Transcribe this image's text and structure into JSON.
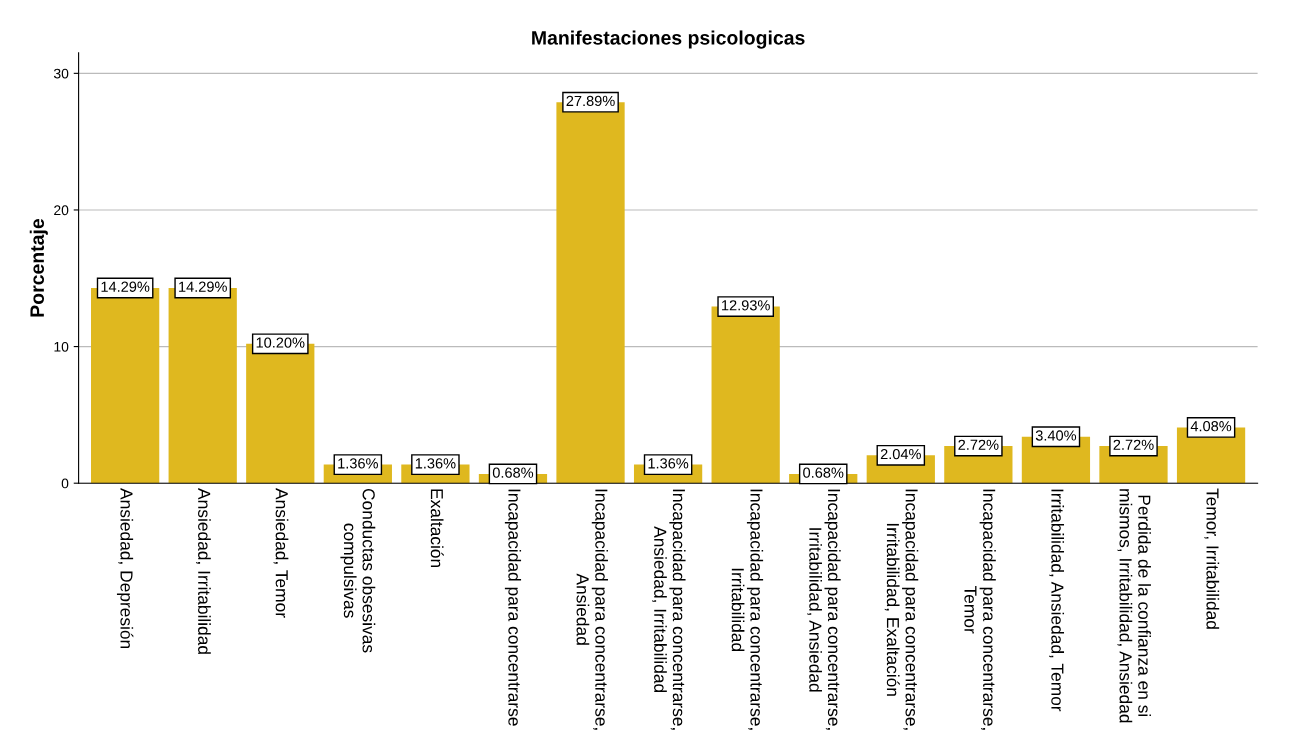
{
  "chart_data": {
    "type": "bar",
    "title": "Manifestaciones psicologicas",
    "ylabel": "Porcentaje",
    "categories": [
      "Ansiedad, Depresión",
      "Ansiedad, Irritabilidad",
      "Ansiedad, Temor",
      "Conductas obsesivas\ncompulsivas",
      "Exaltación",
      "Incapacidad para concentrarse",
      "Incapacidad para concentrarse,\nAnsiedad",
      "Incapacidad para concentrarse,\nAnsiedad, Irritabilidad",
      "Incapacidad para concentrarse,\nIrritabilidad",
      "Incapacidad para concentrarse,\nIrritabilidad, Ansiedad",
      "Incapacidad para concentrarse,\nIrritabilidad, Exaltación",
      "Incapacidad para concentrarse,\nTemor",
      "Irritabilidad, Ansiedad, Temor",
      "Perdida de la confianza en si\nmismos, Irritabilidad, Ansiedad",
      "Temor, Irritabilidad"
    ],
    "values": [
      14.29,
      14.29,
      10.2,
      1.36,
      1.36,
      0.68,
      27.89,
      1.36,
      12.93,
      0.68,
      2.04,
      2.72,
      3.4,
      2.72,
      4.08
    ],
    "value_labels": [
      "14.29%",
      "14.29%",
      "10.20%",
      "1.36%",
      "1.36%",
      "0.68%",
      "27.89%",
      "1.36%",
      "12.93%",
      "0.68%",
      "2.04%",
      "2.72%",
      "3.40%",
      "2.72%",
      "4.08%"
    ],
    "color": "#dfb81f",
    "ylim": [
      0,
      31.5
    ],
    "yticks": [
      0,
      10,
      20,
      30
    ],
    "grid": "y"
  }
}
